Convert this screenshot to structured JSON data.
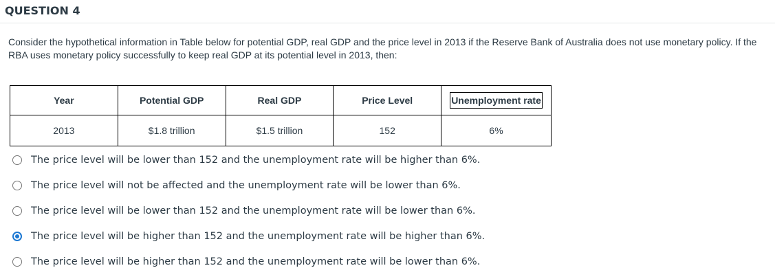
{
  "question": {
    "title": "QUESTION 4",
    "text": "Consider the hypothetical information in Table below for potential GDP, real GDP and the price level in 2013 if the Reserve Bank of Australia does not use monetary policy. If the RBA uses monetary policy successfully to keep real GDP at its potential level in 2013, then:"
  },
  "table": {
    "headers": [
      "Year",
      "Potential GDP",
      "Real GDP",
      "Price Level",
      "Unemployment rate"
    ],
    "row": [
      "2013",
      "$1.8 trillion",
      "$1.5 trillion",
      "152",
      "6%"
    ]
  },
  "answers": {
    "options": [
      {
        "label": "The price level will be lower than 152 and the unemployment rate will be higher than 6%.",
        "selected": false
      },
      {
        "label": "The price level will not be affected and the unemployment rate will be lower than 6%.",
        "selected": false
      },
      {
        "label": "The price level will be lower than 152 and the unemployment rate will be lower than 6%.",
        "selected": false
      },
      {
        "label": "The price level will be higher than 152 and the unemployment rate will be higher than 6%.",
        "selected": true
      },
      {
        "label": "The price level will be higher than 152 and the unemployment rate will be lower than 6%.",
        "selected": false
      }
    ],
    "accent_color": "#1b77d2"
  }
}
